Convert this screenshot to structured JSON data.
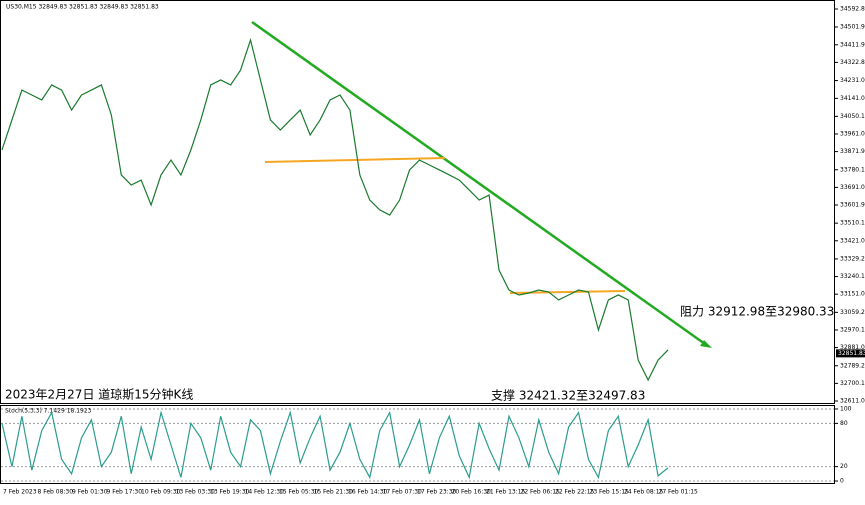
{
  "chart_data": [
    {
      "type": "line",
      "header": "US30,M15  32849.83 32851.83 32849.83 32851.83",
      "title": "2023年2月27日 道琼斯15分钟K线",
      "annotations": [
        "阻力 32912.98至32980.33",
        "支撑 32421.32至32497.83"
      ],
      "current_price": {
        "value": 32851.83,
        "label": "32851.83"
      },
      "x_labels": [
        "7 Feb 2023",
        "8 Feb 08:30",
        "9 Feb 01:30",
        "9 Feb 17:30",
        "10 Feb 09:30",
        "13 Feb 03:30",
        "13 Feb 19:30",
        "14 Feb 12:30",
        "15 Feb 05:30",
        "15 Feb 21:30",
        "16 Feb 14:30",
        "17 Feb 07:30",
        "17 Feb 23:30",
        "20 Feb 16:30",
        "21 Feb 13:15",
        "22 Feb 06:15",
        "22 Feb 22:15",
        "23 Feb 15:15",
        "24 Feb 08:15",
        "27 Feb 01:15"
      ],
      "series": [
        {
          "color": "#1a7a2e",
          "values": [
            33880,
            34032,
            34183,
            34158,
            34133,
            34209,
            34183,
            34082,
            34158,
            34183,
            34209,
            34057,
            33754,
            33703,
            33728,
            33602,
            33754,
            33829,
            33754,
            33880,
            34032,
            34209,
            34234,
            34209,
            34284,
            34436,
            34234,
            34032,
            33981,
            34032,
            34082,
            33956,
            34032,
            34133,
            34158,
            34082,
            33754,
            33627,
            33577,
            33551,
            33627,
            33779,
            33829,
            33804,
            33779,
            33754,
            33728,
            33678,
            33627,
            33652,
            33273,
            33172,
            33147,
            33157,
            33172,
            33162,
            33122,
            33147,
            33172,
            33162,
            32970,
            33122,
            33147,
            33122,
            32818,
            32717,
            32818,
            32869
          ]
        }
      ],
      "ylim": [
        32611.0,
        34592.8
      ],
      "yticks": [
        {
          "value": 34592.8,
          "label": "34592.80"
        },
        {
          "value": 34501.9,
          "label": "34501.90"
        },
        {
          "value": 34411.9,
          "label": "34411.90"
        },
        {
          "value": 34322.8,
          "label": "34322.80"
        },
        {
          "value": 34231.0,
          "label": "34231.00"
        },
        {
          "value": 34141.0,
          "label": "34141.00"
        },
        {
          "value": 34050.1,
          "label": "34050.10"
        },
        {
          "value": 33961.0,
          "label": "33961.00"
        },
        {
          "value": 33871.9,
          "label": "33871.90"
        },
        {
          "value": 33780.1,
          "label": "33780.10"
        },
        {
          "value": 33691.0,
          "label": "33691.00"
        },
        {
          "value": 33601.9,
          "label": "33601.90"
        },
        {
          "value": 33510.1,
          "label": "33510.10"
        },
        {
          "value": 33421.0,
          "label": "33421.00"
        },
        {
          "value": 33329.2,
          "label": "33329.20"
        },
        {
          "value": 33240.1,
          "label": "33240.10"
        },
        {
          "value": 33151.0,
          "label": "33151.00"
        },
        {
          "value": 33059.2,
          "label": "33059.20"
        },
        {
          "value": 32970.1,
          "label": "32970.10"
        },
        {
          "value": 32881.0,
          "label": "32881.00"
        },
        {
          "value": 32789.2,
          "label": "32789.20"
        },
        {
          "value": 32700.1,
          "label": "32700.10"
        },
        {
          "value": 32611.0,
          "label": "32611.00"
        }
      ]
    },
    {
      "type": "line",
      "title": "Stoch(5,3,3) 7.1429 18.1923",
      "series": [
        {
          "color": "#2a9d8f",
          "values": [
            80,
            20,
            90,
            15,
            70,
            95,
            30,
            10,
            60,
            85,
            20,
            40,
            90,
            10,
            75,
            30,
            95,
            50,
            5,
            80,
            60,
            15,
            90,
            40,
            20,
            85,
            70,
            10,
            55,
            95,
            25,
            60,
            90,
            15,
            40,
            80,
            30,
            5,
            70,
            95,
            20,
            50,
            85,
            10,
            60,
            90,
            35,
            5,
            80,
            45,
            15,
            90,
            60,
            20,
            85,
            40,
            10,
            75,
            95,
            30,
            5,
            70,
            90,
            20,
            50,
            85,
            7.1429,
            18.1923
          ]
        }
      ],
      "ylim": [
        0,
        100
      ],
      "yticks": [
        100,
        80,
        20,
        0
      ]
    }
  ]
}
